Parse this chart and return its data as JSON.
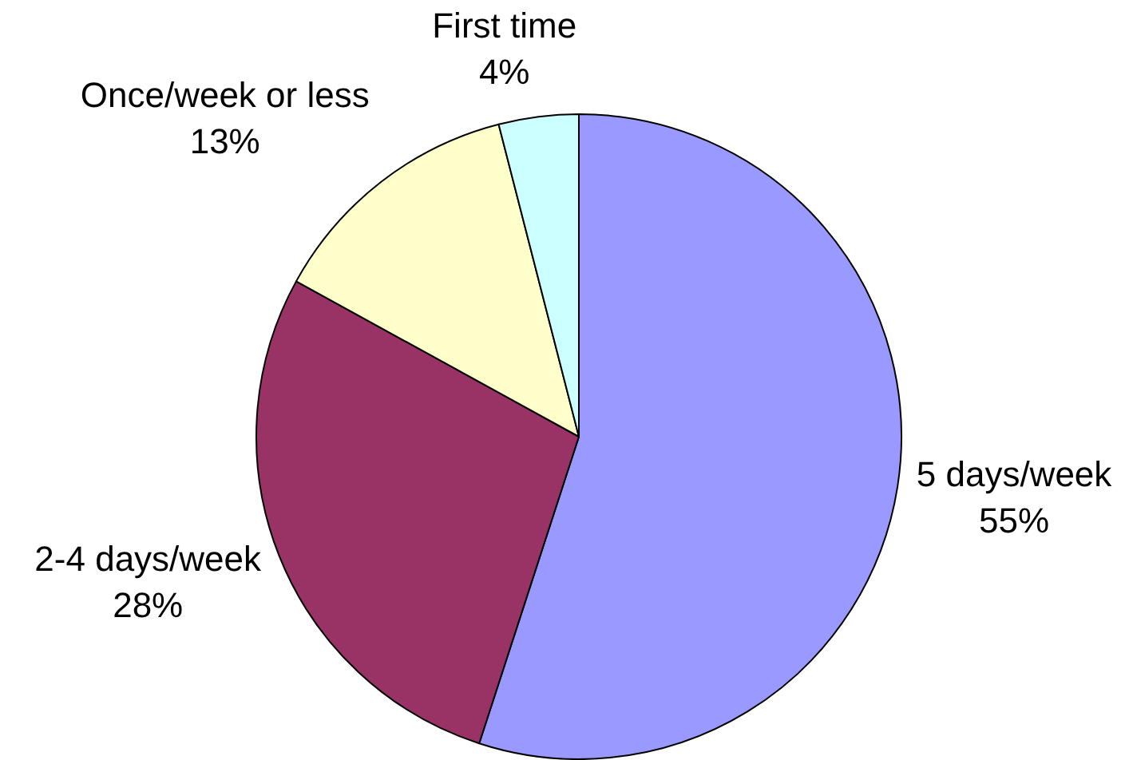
{
  "chart_data": {
    "type": "pie",
    "categories": [
      "5 days/week",
      "2-4 days/week",
      "Once/week or less",
      "First time"
    ],
    "values": [
      55,
      28,
      13,
      4
    ],
    "colors": [
      "#9999ff",
      "#993366",
      "#ffffcc",
      "#ccffff"
    ],
    "value_labels": [
      "55%",
      "28%",
      "13%",
      "4%"
    ],
    "legend": false
  }
}
